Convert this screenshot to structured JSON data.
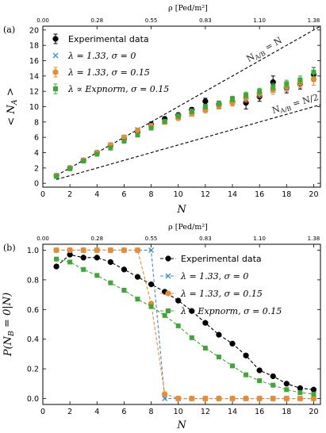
{
  "chart_data": [
    {
      "type": "scatter",
      "panel_label": "(a)",
      "xlabel": "N",
      "ylabel": "< N_A >",
      "xlim": [
        0,
        20.5
      ],
      "ylim": [
        -0.5,
        20.5
      ],
      "x_ticks": [
        0,
        2,
        4,
        6,
        8,
        10,
        12,
        14,
        16,
        18,
        20
      ],
      "y_ticks": [
        0,
        2,
        4,
        6,
        8,
        10,
        12,
        14,
        16,
        18,
        20
      ],
      "top_axis": {
        "label": "ρ [Ped/m²]",
        "ticks": [
          {
            "x": 0,
            "label": "0.00"
          },
          {
            "x": 4,
            "label": "0.28"
          },
          {
            "x": 8,
            "label": "0.55"
          },
          {
            "x": 12,
            "label": "0.83"
          },
          {
            "x": 16,
            "label": "1.10"
          },
          {
            "x": 20,
            "label": "1.38"
          }
        ]
      },
      "legend_position": "top-left",
      "reference_lines": [
        {
          "label": "N_A/B = N",
          "slope": 1,
          "x": [
            1,
            20.5
          ]
        },
        {
          "label": "N_A/B = N/2",
          "slope": 0.5,
          "x": [
            1,
            20.5
          ]
        }
      ],
      "series": [
        {
          "name": "Experimental data",
          "marker": "circle",
          "color": "#000000",
          "x": [
            1,
            2,
            3,
            4,
            5,
            6,
            7,
            8,
            9,
            10,
            11,
            12,
            13,
            14,
            15,
            16,
            17,
            18,
            19,
            20
          ],
          "y": [
            1.0,
            2.0,
            3.0,
            4.0,
            4.9,
            5.8,
            6.7,
            7.7,
            8.4,
            8.9,
            9.6,
            10.7,
            10.3,
            10.6,
            10.5,
            11.3,
            13.2,
            12.5,
            13.0,
            14.2
          ],
          "yerr": [
            0.1,
            0.1,
            0.1,
            0.15,
            0.2,
            0.2,
            0.25,
            0.3,
            0.3,
            0.3,
            0.3,
            0.4,
            0.4,
            0.5,
            0.8,
            0.6,
            0.8,
            0.7,
            0.7,
            0.9
          ]
        },
        {
          "name": "λ = 1.33, σ = 0",
          "marker": "x",
          "color": "#3a8fd6",
          "x": [
            1,
            2,
            3,
            4,
            5,
            6,
            7,
            8,
            9,
            10,
            11,
            12,
            13,
            14,
            15,
            16,
            17,
            18,
            19,
            20
          ],
          "y": [
            1.0,
            2.0,
            3.0,
            4.0,
            5.0,
            6.0,
            7.0,
            7.6,
            8.0,
            8.6,
            9.0,
            9.6,
            10.0,
            10.6,
            11.0,
            11.6,
            12.1,
            12.4,
            13.0,
            13.7
          ]
        },
        {
          "name": "λ = 1.33, σ = 0.15",
          "marker": "circle",
          "color": "#f08a24",
          "x": [
            1,
            2,
            3,
            4,
            5,
            6,
            7,
            8,
            9,
            10,
            11,
            12,
            13,
            14,
            15,
            16,
            17,
            18,
            19,
            20
          ],
          "y": [
            1.0,
            2.0,
            3.0,
            4.0,
            5.0,
            6.0,
            6.9,
            7.5,
            8.0,
            8.5,
            9.1,
            9.6,
            10.1,
            10.5,
            11.1,
            11.7,
            12.2,
            12.6,
            13.1,
            13.6
          ],
          "yerr": [
            0.05,
            0.1,
            0.1,
            0.1,
            0.15,
            0.15,
            0.2,
            0.2,
            0.3,
            0.3,
            0.3,
            0.4,
            0.4,
            0.4,
            0.5,
            0.5,
            0.6,
            0.6,
            0.6,
            0.8
          ]
        },
        {
          "name": "λ ∝ Expnorm, σ = 0.15",
          "marker": "square",
          "color": "#3aaa35",
          "x": [
            1,
            2,
            3,
            4,
            5,
            6,
            7,
            8,
            9,
            10,
            11,
            12,
            13,
            14,
            15,
            16,
            17,
            18,
            19,
            20
          ],
          "y": [
            0.9,
            1.9,
            2.9,
            3.8,
            4.6,
            5.5,
            6.3,
            7.2,
            8.1,
            8.8,
            9.4,
            10.0,
            10.4,
            11.0,
            11.5,
            12.0,
            12.6,
            13.0,
            13.5,
            14.5
          ],
          "yerr": [
            0.05,
            0.1,
            0.1,
            0.1,
            0.15,
            0.15,
            0.2,
            0.2,
            0.25,
            0.3,
            0.3,
            0.3,
            0.35,
            0.35,
            0.4,
            0.4,
            0.45,
            0.45,
            0.5,
            0.6
          ]
        }
      ]
    },
    {
      "type": "line",
      "panel_label": "(b)",
      "xlabel": "N",
      "ylabel": "P(N_B = 0|N)",
      "xlim": [
        0,
        20.5
      ],
      "ylim": [
        -0.04,
        1.04
      ],
      "x_ticks": [
        0,
        2,
        4,
        6,
        8,
        10,
        12,
        14,
        16,
        18,
        20
      ],
      "y_ticks": [
        0.0,
        0.2,
        0.4,
        0.6,
        0.8,
        1.0
      ],
      "top_axis": {
        "label": "ρ [Ped/m²]",
        "ticks": [
          {
            "x": 0,
            "label": "0.00"
          },
          {
            "x": 4,
            "label": "0.28"
          },
          {
            "x": 8,
            "label": "0.55"
          },
          {
            "x": 12,
            "label": "0.83"
          },
          {
            "x": 16,
            "label": "1.10"
          },
          {
            "x": 20,
            "label": "1.38"
          }
        ]
      },
      "legend_position": "top-right",
      "series": [
        {
          "name": "Experimental data",
          "marker": "circle",
          "color": "#000000",
          "x": [
            1,
            2,
            3,
            4,
            5,
            6,
            7,
            8,
            9,
            10,
            11,
            12,
            13,
            14,
            15,
            16,
            17,
            18,
            19,
            20
          ],
          "y": [
            0.89,
            0.97,
            0.95,
            0.95,
            0.92,
            0.87,
            0.82,
            0.77,
            0.72,
            0.66,
            0.59,
            0.51,
            0.43,
            0.37,
            0.29,
            0.19,
            0.15,
            0.1,
            0.07,
            0.06
          ]
        },
        {
          "name": "λ = 1.33, σ = 0",
          "marker": "x",
          "color": "#3a8fd6",
          "x": [
            1,
            2,
            3,
            4,
            5,
            6,
            7,
            8,
            9,
            10,
            11,
            12,
            13,
            14,
            15,
            16,
            17,
            18,
            19,
            20
          ],
          "y": [
            1.0,
            1.0,
            1.0,
            1.0,
            1.0,
            1.0,
            1.0,
            1.0,
            0.0,
            0.0,
            0.0,
            0.0,
            0.0,
            0.0,
            0.0,
            0.0,
            0.0,
            0.0,
            0.0,
            0.0
          ]
        },
        {
          "name": "λ = 1.33, σ = 0.15",
          "marker": "circle",
          "color": "#f08a24",
          "x": [
            1,
            2,
            3,
            4,
            5,
            6,
            7,
            8,
            9,
            10,
            11,
            12,
            13,
            14,
            15,
            16,
            17,
            18,
            19,
            20
          ],
          "y": [
            1.0,
            1.0,
            1.0,
            1.0,
            1.0,
            1.0,
            1.0,
            0.64,
            0.03,
            0.0,
            0.0,
            0.0,
            0.0,
            0.0,
            0.0,
            0.0,
            0.0,
            0.0,
            0.0,
            0.0
          ]
        },
        {
          "name": "λ ∝ Expnorm, σ = 0.15",
          "marker": "square",
          "color": "#3aaa35",
          "x": [
            1,
            2,
            3,
            4,
            5,
            6,
            7,
            8,
            9,
            10,
            11,
            12,
            13,
            14,
            15,
            16,
            17,
            18,
            19,
            20
          ],
          "y": [
            0.94,
            0.92,
            0.87,
            0.83,
            0.78,
            0.73,
            0.67,
            0.62,
            0.56,
            0.49,
            0.41,
            0.34,
            0.28,
            0.22,
            0.16,
            0.12,
            0.09,
            0.06,
            0.04,
            0.03
          ]
        }
      ]
    }
  ]
}
